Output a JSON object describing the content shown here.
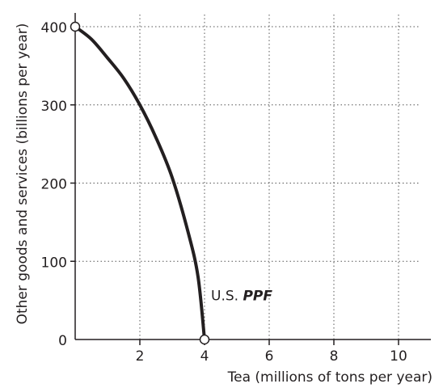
{
  "chart_data": {
    "type": "line",
    "xlabel": "Tea (millions of tons per year)",
    "ylabel": "Other goods and services (billions per year)",
    "xlim": [
      0,
      11
    ],
    "ylim": [
      0,
      400
    ],
    "x_ticks": [
      2,
      4,
      6,
      8,
      10
    ],
    "x_tick_labels": [
      "2",
      "4",
      "6",
      "8",
      "10"
    ],
    "y_ticks": [
      0,
      100,
      200,
      300,
      400
    ],
    "y_tick_labels": [
      "0",
      "100",
      "200",
      "300",
      "400"
    ],
    "grid": true,
    "series": [
      {
        "name": "U.S. PPF",
        "color": "#231f20",
        "x": [
          0,
          0.5,
          1,
          1.5,
          2,
          2.5,
          3,
          3.5,
          3.8,
          4
        ],
        "y": [
          400,
          384,
          360,
          334,
          300,
          258,
          207,
          136,
          80,
          0
        ]
      }
    ],
    "endpoints": [
      {
        "x": 0,
        "y": 400
      },
      {
        "x": 4,
        "y": 0
      }
    ],
    "annotations": [
      {
        "prefix": "U.S. ",
        "emphasis": "PPF",
        "x": 4.2,
        "y": 50
      }
    ]
  }
}
